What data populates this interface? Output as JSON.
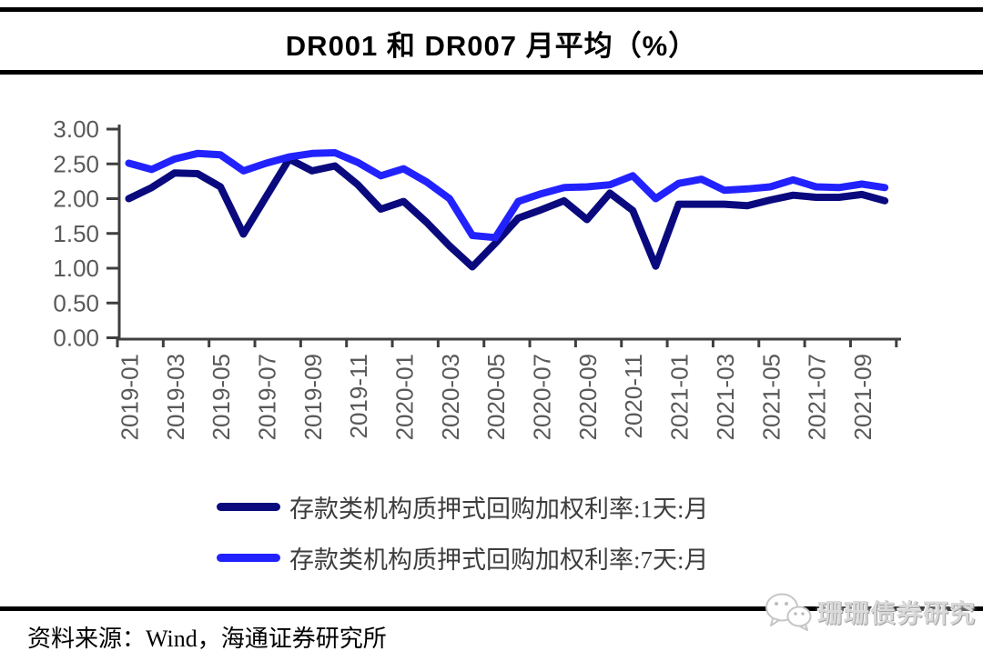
{
  "header": {
    "title": "DR001 和 DR007 月平均（%）"
  },
  "legend": {
    "items": [
      {
        "label": "存款类机构质押式回购加权利率:1天:月",
        "color": "#0A0A7E"
      },
      {
        "label": "存款类机构质押式回购加权利率:7天:月",
        "color": "#2222FF"
      }
    ]
  },
  "footer": {
    "source_note": "资料来源：Wind，海通证券研究所",
    "watermark_text": "珊珊债券研究",
    "watermark_icon": "wechat-chat-bubbles-icon"
  },
  "chart_data": {
    "type": "line",
    "title": "DR001 和 DR007 月平均（%）",
    "xlabel": "",
    "ylabel": "",
    "ylim": [
      0.0,
      3.0
    ],
    "grid": false,
    "legend_position": "bottom",
    "axis_color": "#3f3f3f",
    "tick_label_color": "#595959",
    "y_ticks": [
      "3.00",
      "2.50",
      "2.00",
      "1.50",
      "1.00",
      "0.50",
      "0.00"
    ],
    "x": [
      "2019-01",
      "2019-02",
      "2019-03",
      "2019-04",
      "2019-05",
      "2019-06",
      "2019-07",
      "2019-08",
      "2019-09",
      "2019-10",
      "2019-11",
      "2019-12",
      "2020-01",
      "2020-02",
      "2020-03",
      "2020-04",
      "2020-05",
      "2020-06",
      "2020-07",
      "2020-08",
      "2020-09",
      "2020-10",
      "2020-11",
      "2020-12",
      "2021-01",
      "2021-02",
      "2021-03",
      "2021-04",
      "2021-05",
      "2021-06",
      "2021-07",
      "2021-08",
      "2021-09",
      "2021-10"
    ],
    "x_tick_labels": [
      "2019-01",
      "2019-03",
      "2019-05",
      "2019-07",
      "2019-09",
      "2019-11",
      "2020-01",
      "2020-03",
      "2020-05",
      "2020-07",
      "2020-09",
      "2020-11",
      "2021-01",
      "2021-03",
      "2021-05",
      "2021-07",
      "2021-09"
    ],
    "series": [
      {
        "name": "存款类机构质押式回购加权利率:1天:月",
        "color": "#0A0A7E",
        "values": [
          2.0,
          2.16,
          2.37,
          2.36,
          2.17,
          1.49,
          2.03,
          2.57,
          2.4,
          2.47,
          2.2,
          1.85,
          1.96,
          1.66,
          1.32,
          1.02,
          1.36,
          1.72,
          1.84,
          1.97,
          1.7,
          2.08,
          1.83,
          1.03,
          1.92,
          1.92,
          1.92,
          1.9,
          1.98,
          2.05,
          2.02,
          2.02,
          2.06,
          1.97
        ]
      },
      {
        "name": "存款类机构质押式回购加权利率:7天:月",
        "color": "#2222FF",
        "values": [
          2.51,
          2.42,
          2.57,
          2.65,
          2.63,
          2.4,
          2.51,
          2.6,
          2.65,
          2.66,
          2.52,
          2.33,
          2.43,
          2.24,
          2.0,
          1.47,
          1.44,
          1.96,
          2.07,
          2.16,
          2.17,
          2.2,
          2.33,
          2.0,
          2.22,
          2.28,
          2.12,
          2.14,
          2.17,
          2.27,
          2.17,
          2.16,
          2.21,
          2.16
        ]
      }
    ]
  }
}
